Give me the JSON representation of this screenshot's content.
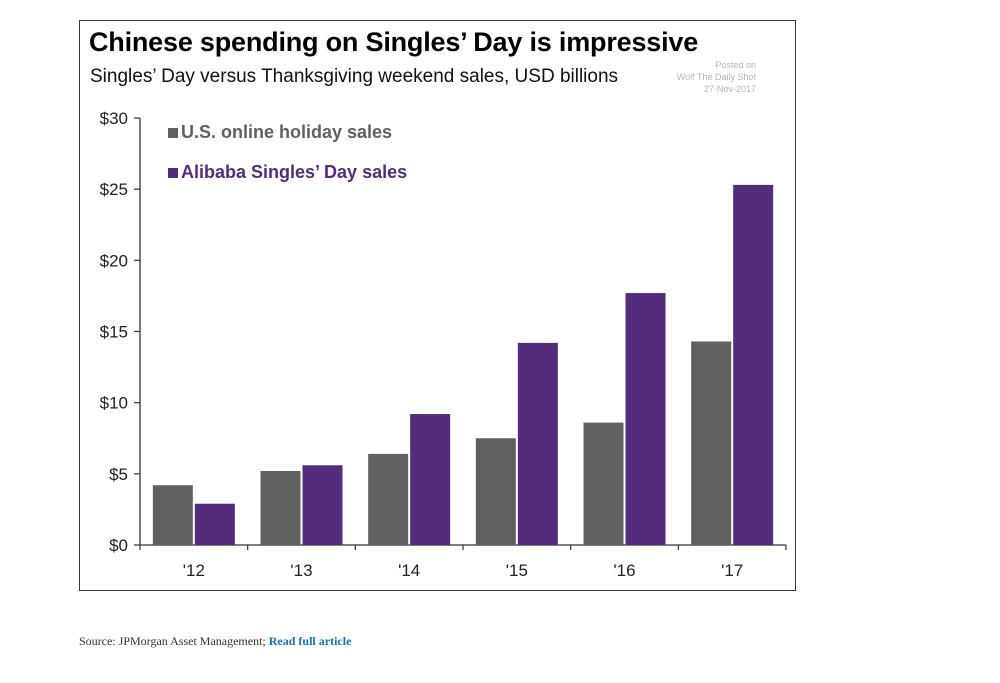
{
  "chart_data": {
    "type": "bar",
    "title": "Chinese spending on Singles’ Day is impressive",
    "subtitle": "Singles’ Day versus Thanksgiving weekend sales, USD billions",
    "categories": [
      "'12",
      "'13",
      "'14",
      "'15",
      "'16",
      "'17"
    ],
    "series": [
      {
        "name": "U.S. online holiday sales",
        "color": "#606060",
        "values": [
          4.2,
          5.2,
          6.4,
          7.5,
          8.6,
          14.3
        ]
      },
      {
        "name": "Alibaba Singles’ Day sales",
        "color": "#532c7c",
        "values": [
          2.9,
          5.6,
          9.2,
          14.2,
          17.7,
          25.3
        ]
      }
    ],
    "y_ticks": [
      "$0",
      "$5",
      "$10",
      "$15",
      "$20",
      "$25",
      "$30"
    ],
    "ylim": [
      0,
      30
    ],
    "xlabel": "",
    "ylabel": "",
    "grid": false,
    "legend_position": "top-left"
  },
  "watermark": {
    "line1": "Posted on",
    "line2": "Wolf The Daily Shot",
    "line3": "27-Nov-2017"
  },
  "footer": {
    "source_text": "Source: JPMorgan Asset Management;",
    "link_text": "Read full article"
  }
}
